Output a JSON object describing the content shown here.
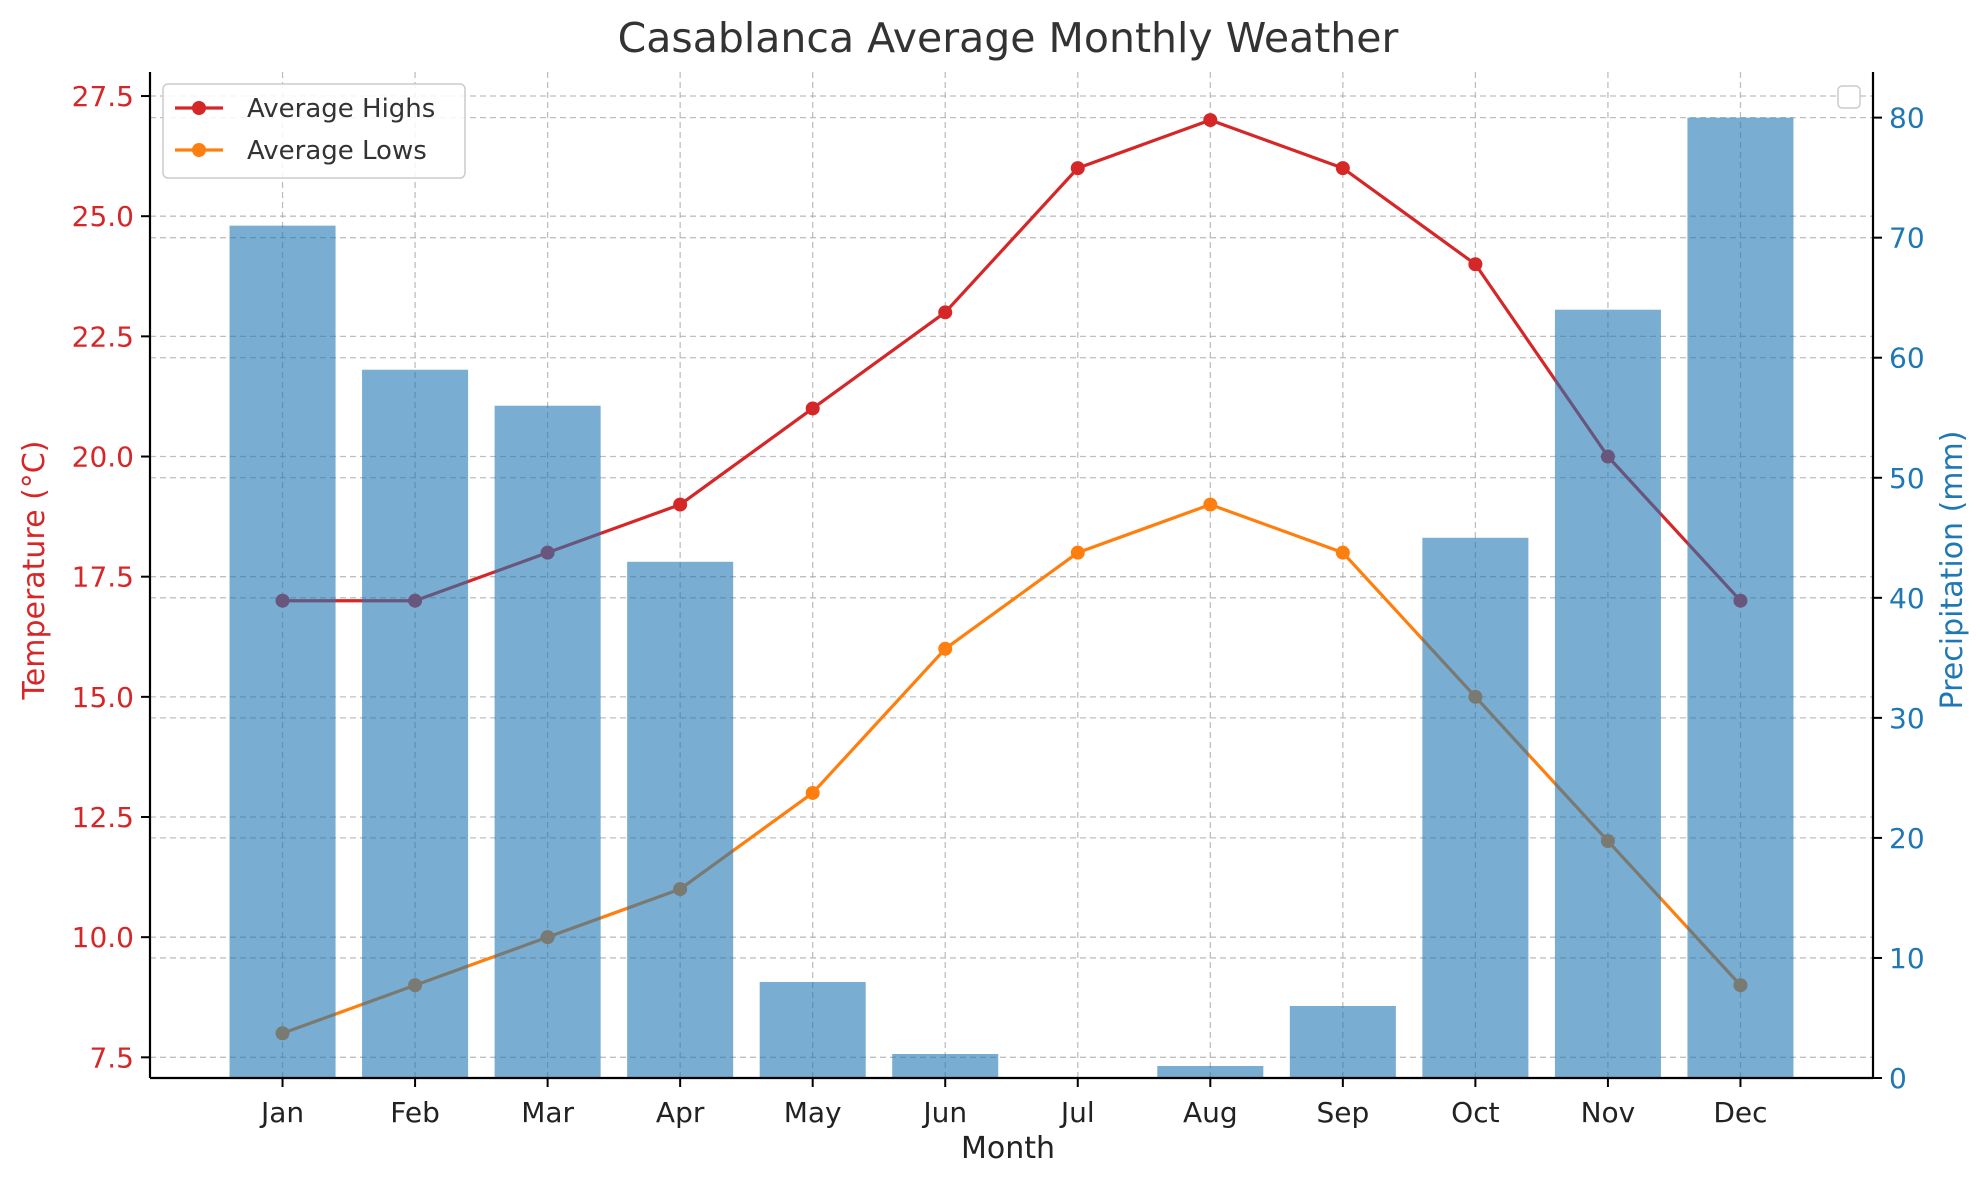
{
  "chart_data": {
    "type": "bar+line",
    "title": "Casablanca Average Monthly Weather",
    "xlabel": "Month",
    "ylabel_left": "Temperature (°C)",
    "ylabel_right": "Precipitation (mm)",
    "categories": [
      "Jan",
      "Feb",
      "Mar",
      "Apr",
      "May",
      "Jun",
      "Jul",
      "Aug",
      "Sep",
      "Oct",
      "Nov",
      "Dec"
    ],
    "left_axis": {
      "ylim": [
        7.07,
        28.0
      ],
      "ticks": [
        7.5,
        10.0,
        12.5,
        15.0,
        17.5,
        20.0,
        22.5,
        25.0,
        27.5
      ],
      "tick_labels": [
        "7.5",
        "10.0",
        "12.5",
        "15.0",
        "17.5",
        "20.0",
        "22.5",
        "25.0",
        "27.5"
      ],
      "color": "#d62728"
    },
    "right_axis": {
      "ylim": [
        0,
        83.8
      ],
      "ticks": [
        0,
        10,
        20,
        30,
        40,
        50,
        60,
        70,
        80
      ],
      "tick_labels": [
        "0",
        "10",
        "20",
        "30",
        "40",
        "50",
        "60",
        "70",
        "80"
      ],
      "color": "#1f77b4"
    },
    "series": [
      {
        "name": "Average Highs",
        "type": "line",
        "axis": "left",
        "color": "#d62728",
        "values": [
          17,
          17,
          18,
          19,
          21,
          23,
          26,
          27,
          26,
          24,
          20,
          17
        ]
      },
      {
        "name": "Average Lows",
        "type": "line",
        "axis": "left",
        "color": "#ff7f0e",
        "values": [
          8,
          9,
          10,
          11,
          13,
          16,
          18,
          19,
          18,
          15,
          12,
          9
        ]
      },
      {
        "type": "bar",
        "axis": "right",
        "color": "#1f77b4",
        "values": [
          71,
          59,
          56,
          43,
          8,
          2,
          0,
          1,
          6,
          45,
          64,
          80
        ]
      }
    ],
    "grid": true,
    "legend": {
      "position": "top-left",
      "entries": [
        "Average Highs",
        "Average Lows"
      ]
    },
    "second_legend": {
      "position": "top-right",
      "entries": []
    }
  }
}
